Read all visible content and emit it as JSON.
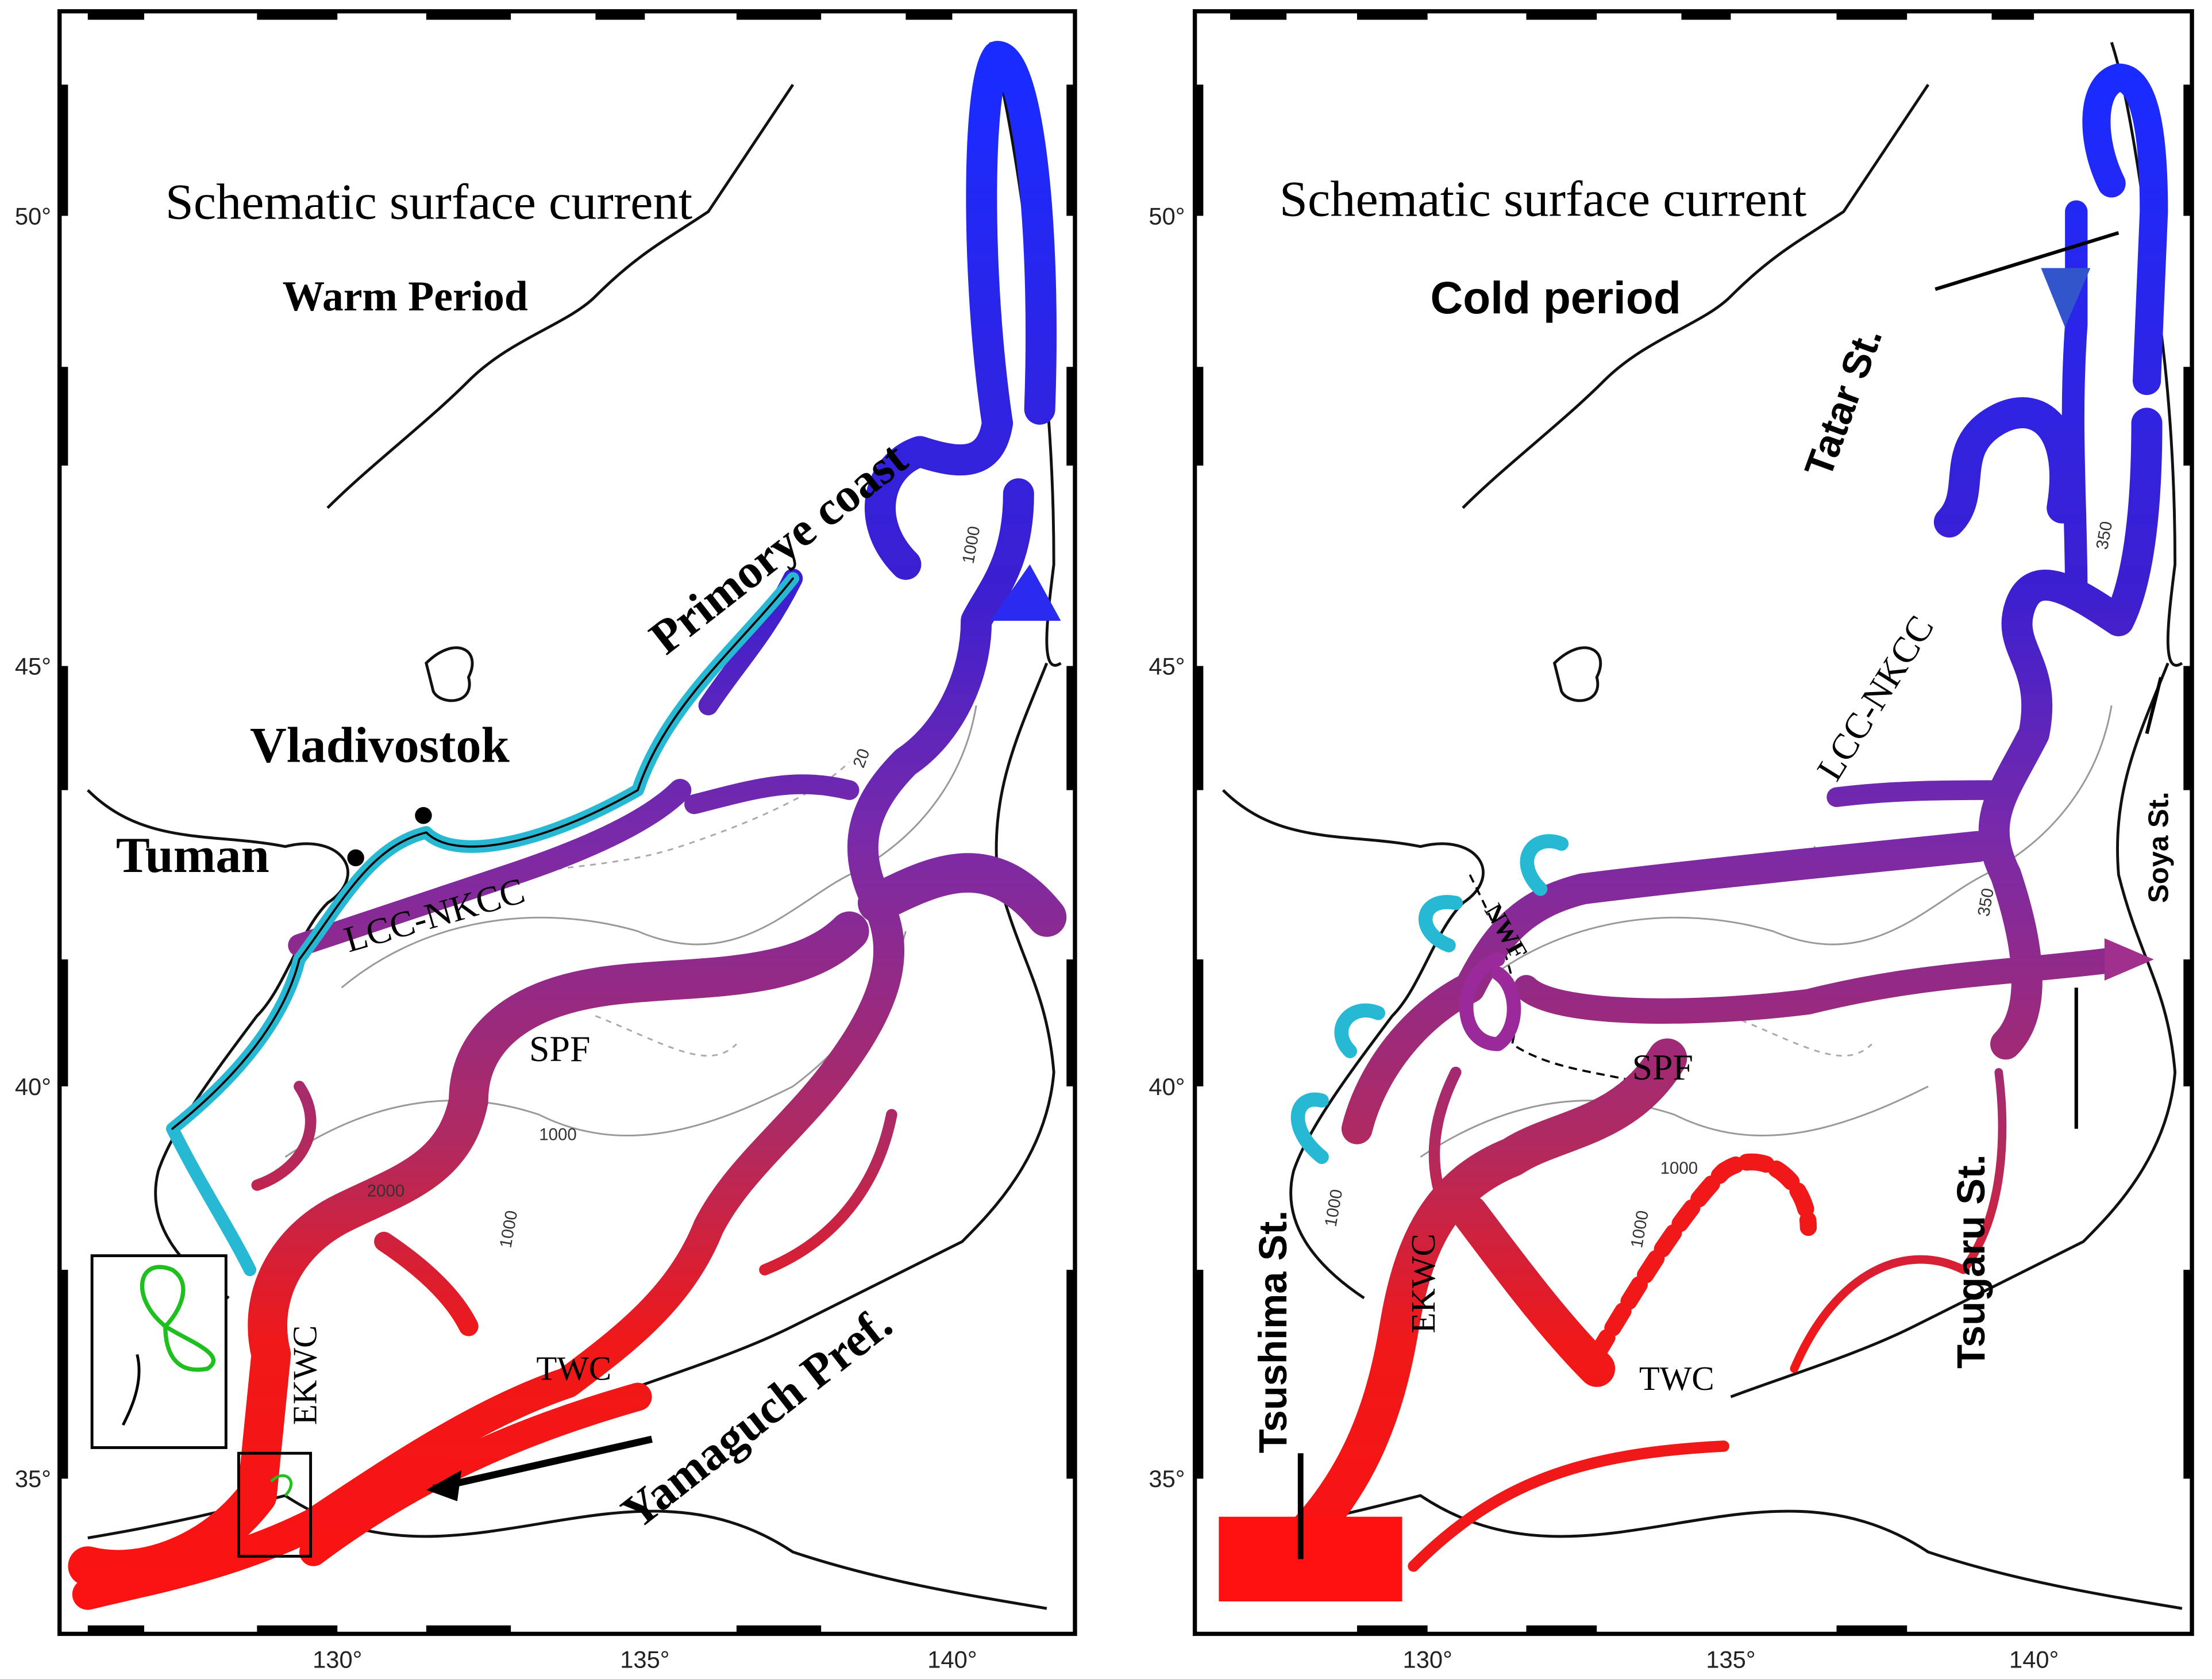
{
  "panels": [
    {
      "title": "Schematic surface current",
      "period": "Warm Period",
      "x_ticks": [
        "130°",
        "135°",
        "140°"
      ],
      "y_ticks": [
        "50°",
        "45°",
        "40°",
        "35°"
      ],
      "labels": {
        "primorye": "Primorye coast",
        "vladivostok": "Vladivostok",
        "tuman": "Tuman",
        "lcc": "LCC-NKCC",
        "spf": "SPF",
        "ekwc": "EKWC",
        "twc": "TWC",
        "yamaguchi": "Yamaguch Pref."
      },
      "contours": [
        "2000",
        "1000",
        "1000",
        "1000",
        "20"
      ]
    },
    {
      "title": "Schematic surface current",
      "period": "Cold period",
      "x_ticks": [
        "130°",
        "135°",
        "140°"
      ],
      "y_ticks": [
        "50°",
        "45°",
        "40°",
        "35°"
      ],
      "labels": {
        "tatar": "Tatar St.",
        "lcc": "LCC-NKCC",
        "nwf": "NWF",
        "spf": "SPF",
        "ekwc": "EKWC",
        "twc": "TWC",
        "tsushima": "Tsushima St.",
        "tsugaru": "Tsugaru St.",
        "soya": "Soya St."
      },
      "contours": [
        "1000",
        "1000",
        "1000",
        "350",
        "350"
      ]
    }
  ]
}
